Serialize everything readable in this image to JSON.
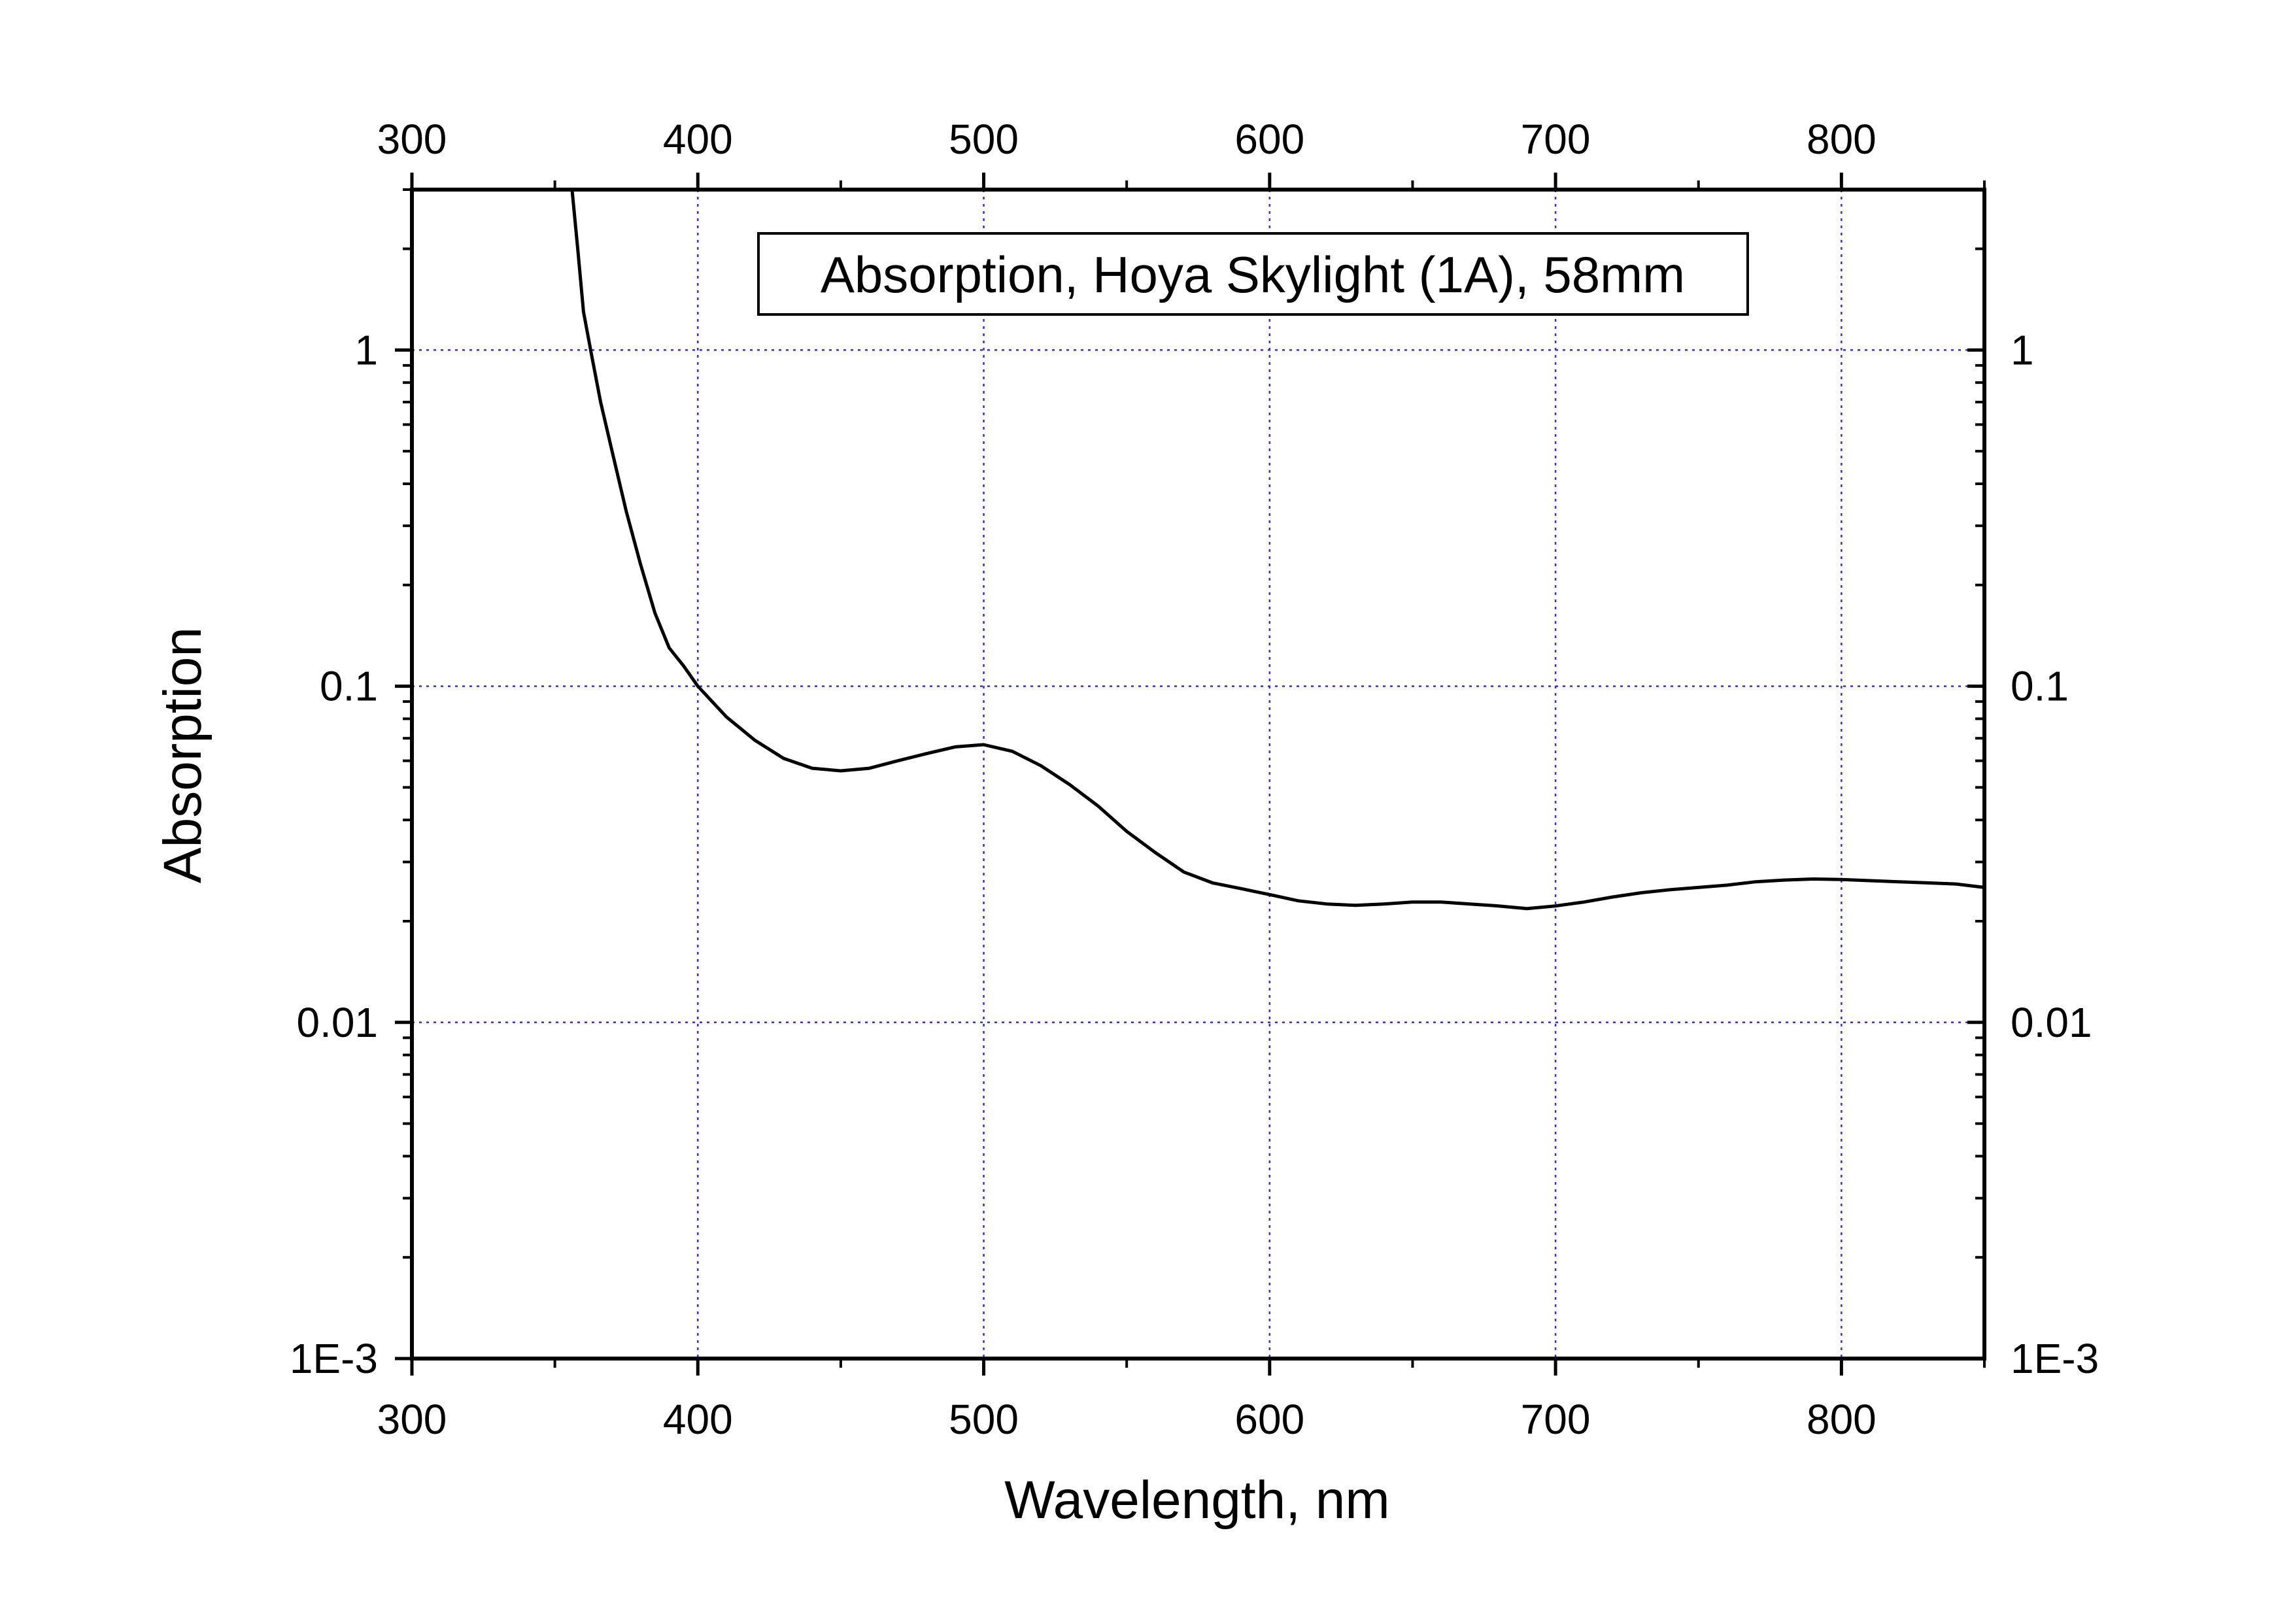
{
  "chart_data": {
    "type": "line",
    "title": "Absorption, Hoya Skylight (1A), 58mm",
    "xlabel": "Wavelength, nm",
    "ylabel": "Absorption",
    "xlim": [
      300,
      850
    ],
    "ylim": [
      0.001,
      3.0
    ],
    "yscale": "log",
    "x_ticks": [
      "300",
      "400",
      "500",
      "600",
      "700",
      "800"
    ],
    "y_ticks": [
      "1E-3",
      "0.01",
      "0.1",
      "1"
    ],
    "grid": true,
    "legend": "none",
    "series": [
      {
        "x": [
          356,
          358,
          360,
          363,
          366,
          370,
          375,
          380,
          385,
          390,
          395,
          400,
          410,
          420,
          430,
          440,
          450,
          460,
          470,
          480,
          490,
          500,
          510,
          520,
          530,
          540,
          550,
          560,
          570,
          580,
          590,
          600,
          610,
          620,
          630,
          640,
          650,
          660,
          670,
          680,
          690,
          700,
          710,
          720,
          730,
          740,
          750,
          760,
          770,
          780,
          790,
          800,
          810,
          820,
          830,
          840,
          850
        ],
        "y": [
          3.0,
          2.0,
          1.3,
          0.95,
          0.7,
          0.5,
          0.33,
          0.23,
          0.165,
          0.13,
          0.115,
          0.1,
          0.081,
          0.069,
          0.061,
          0.057,
          0.056,
          0.057,
          0.06,
          0.063,
          0.066,
          0.067,
          0.064,
          0.058,
          0.051,
          0.044,
          0.037,
          0.032,
          0.028,
          0.026,
          0.025,
          0.024,
          0.023,
          0.0225,
          0.0223,
          0.0225,
          0.0228,
          0.0228,
          0.0225,
          0.0222,
          0.0218,
          0.0222,
          0.0228,
          0.0236,
          0.0243,
          0.0248,
          0.0252,
          0.0256,
          0.0262,
          0.0265,
          0.0267,
          0.0266,
          0.0264,
          0.0262,
          0.026,
          0.0258,
          0.0252
        ]
      }
    ],
    "colors": {
      "line": "#000000",
      "grid": "#3333cc",
      "frame": "#000000"
    }
  }
}
